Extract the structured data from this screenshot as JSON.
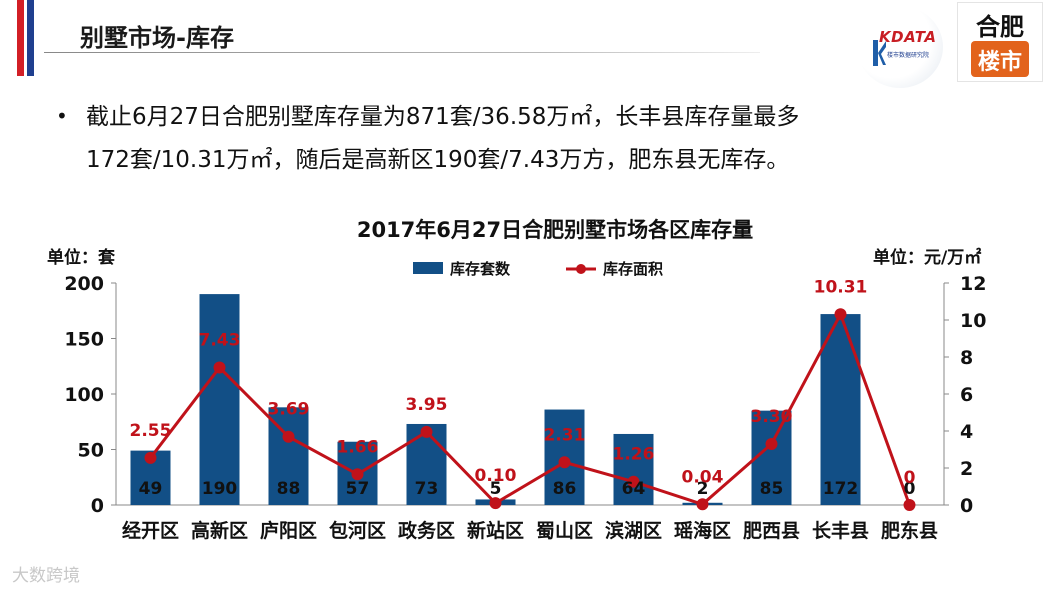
{
  "header": {
    "title": "别墅市场-库存",
    "logo_kdata_text": "KDATA",
    "logo_kdata_sub": "楼市数据研究院",
    "logo_hefei_top": "合肥",
    "logo_hefei_stamp": "楼市"
  },
  "summary": {
    "bullet": "•",
    "line1": "截止6月27日合肥别墅库存量为871套/36.58万㎡，长丰县库存量最多",
    "line2": "172套/10.31万㎡，随后是高新区190套/7.43万方，肥东县无库存。"
  },
  "chart_data": {
    "type": "bar",
    "title": "2017年6月27日合肥别墅市场各区库存量",
    "y_unit_left": "单位：套",
    "y_unit_right": "单位：元/万㎡",
    "categories": [
      "经开区",
      "高新区",
      "庐阳区",
      "包河区",
      "政务区",
      "新站区",
      "蜀山区",
      "滨湖区",
      "瑶海区",
      "肥西县",
      "长丰县",
      "肥东县"
    ],
    "series": [
      {
        "name": "库存套数",
        "type": "bar",
        "axis": "left",
        "values": [
          49,
          190,
          88,
          57,
          73,
          5,
          86,
          64,
          2,
          85,
          172,
          0
        ],
        "labels": [
          "49",
          "190",
          "88",
          "57",
          "73",
          "5",
          "86",
          "64",
          "2",
          "85",
          "172",
          "0"
        ]
      },
      {
        "name": "库存面积",
        "type": "line",
        "axis": "right",
        "values": [
          2.55,
          7.43,
          3.69,
          1.66,
          3.95,
          0.1,
          2.31,
          1.26,
          0.04,
          3.3,
          10.31,
          0
        ],
        "labels": [
          "2.55",
          "7.43",
          "3.69",
          "1.66",
          "3.95",
          "0.10",
          "2.31",
          "1.26",
          "0.04",
          "3.30",
          "10.31",
          "0"
        ]
      }
    ],
    "y_left": {
      "min": 0,
      "max": 200,
      "ticks": [
        0,
        50,
        100,
        150,
        200
      ]
    },
    "y_right": {
      "min": 0,
      "max": 12,
      "ticks": [
        0,
        2,
        4,
        6,
        8,
        10,
        12
      ]
    },
    "legend_position": "top",
    "grid": false,
    "colors": {
      "bar": "#124f86",
      "line": "#c0121a",
      "line_label": "#c0121a",
      "bar_label": "#111111"
    }
  },
  "watermark": "大数跨境"
}
